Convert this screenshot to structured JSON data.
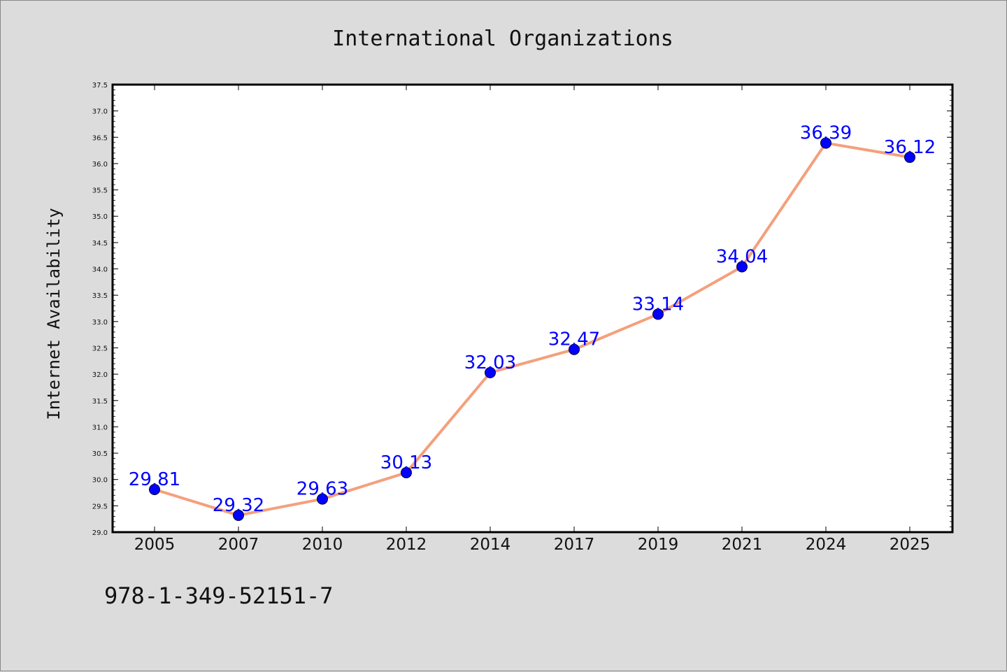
{
  "chart_data": {
    "type": "line",
    "title": "International Organizations",
    "xlabel": "",
    "ylabel": "Internet Availability",
    "categories": [
      "2005",
      "2007",
      "2010",
      "2012",
      "2014",
      "2017",
      "2019",
      "2021",
      "2024",
      "2025"
    ],
    "series": [
      {
        "values": [
          29.81,
          29.32,
          29.63,
          30.13,
          32.03,
          32.47,
          33.14,
          34.04,
          36.39,
          36.12
        ],
        "line_color": "#f4a07c",
        "marker_color": "#0000ff"
      }
    ],
    "data_labels": [
      "29.81",
      "29.32",
      "29.63",
      "30.13",
      "32.03",
      "32.47",
      "33.14",
      "34.04",
      "36.39",
      "36.12"
    ],
    "ylim": [
      29.0,
      37.5
    ],
    "yticks": [
      "29.0",
      "29.5",
      "30.0",
      "30.5",
      "31.0",
      "31.5",
      "32.0",
      "32.5",
      "33.0",
      "33.5",
      "34.0",
      "34.5",
      "35.0",
      "35.5",
      "36.0",
      "36.5",
      "37.0",
      "37.5"
    ],
    "grid": false,
    "legend": "none"
  },
  "footer": {
    "code": "978-1-349-52151-7"
  }
}
